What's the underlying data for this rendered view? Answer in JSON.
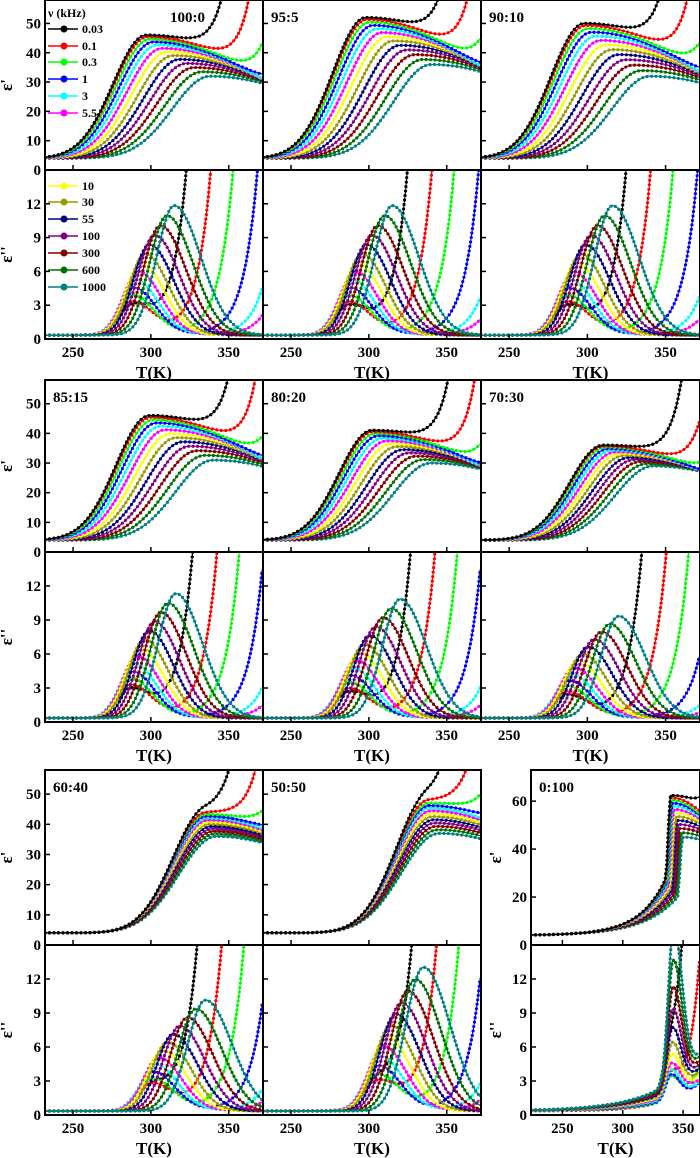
{
  "chart_data": {
    "type": "line",
    "x_label": "T(K)",
    "y_label_real": "ε'",
    "y_label_imag": "ε''",
    "legend": {
      "title": "ν (kHz)",
      "placement": "top-left of first column",
      "entries": [
        "0.03",
        "0.1",
        "0.3",
        "1",
        "3",
        "5.5",
        "10",
        "30",
        "55",
        "100",
        "300",
        "600",
        "1000"
      ]
    },
    "series_colors": [
      "#000000",
      "#ff0000",
      "#00ff00",
      "#0000ff",
      "#00ffff",
      "#ff00ff",
      "#ffff00",
      "#9a9a00",
      "#000080",
      "#800080",
      "#800000",
      "#007000",
      "#008080"
    ],
    "x_ticks": [
      "250",
      "300",
      "350"
    ],
    "xlim": [
      232,
      372
    ],
    "real_ylim": [
      0,
      58
    ],
    "real_ticks": [
      "0",
      "10",
      "20",
      "30",
      "40",
      "50"
    ],
    "imag_ylim": [
      0,
      15
    ],
    "imag_ticks": [
      "0",
      "3",
      "6",
      "9",
      "12"
    ],
    "panels": [
      {
        "label": "100:0",
        "eps_real_peak_T": [
          297,
          338
        ],
        "eps_real_peak": [
          46,
          32
        ],
        "eps_imag_peak_T": [
          288,
          315
        ],
        "eps_imag_peak": [
          2.5,
          11.5
        ],
        "conduction_T": 323
      },
      {
        "label": "95:5",
        "eps_real_peak_T": [
          298,
          340
        ],
        "eps_real_peak": [
          52,
          36
        ],
        "eps_imag_peak_T": [
          287,
          315
        ],
        "eps_imag_peak": [
          2.5,
          11.5
        ],
        "conduction_T": 325
      },
      {
        "label": "90:10",
        "eps_real_peak_T": [
          298,
          340
        ],
        "eps_real_peak": [
          50,
          32
        ],
        "eps_imag_peak_T": [
          287,
          316
        ],
        "eps_imag_peak": [
          2.5,
          11.5
        ],
        "conduction_T": 325
      },
      {
        "label": "85:15",
        "eps_real_peak_T": [
          299,
          340
        ],
        "eps_real_peak": [
          46,
          31
        ],
        "eps_imag_peak_T": [
          287,
          316
        ],
        "eps_imag_peak": [
          2.5,
          11
        ],
        "conduction_T": 327
      },
      {
        "label": "80:20",
        "eps_real_peak_T": [
          302,
          340
        ],
        "eps_real_peak": [
          41,
          30
        ],
        "eps_imag_peak_T": [
          287,
          320
        ],
        "eps_imag_peak": [
          2.2,
          10.5
        ],
        "conduction_T": 327
      },
      {
        "label": "70:30",
        "eps_real_peak_T": [
          310,
          342
        ],
        "eps_real_peak": [
          36,
          29
        ],
        "eps_imag_peak_T": [
          287,
          320
        ],
        "eps_imag_peak": [
          2,
          9
        ]
      },
      {
        "label": "60:40",
        "eps_real_peak_T": [
          335,
          342
        ],
        "eps_real_peak": [
          44,
          36
        ],
        "eps_imag_peak_T": [
          300,
          335
        ],
        "eps_imag_peak": [
          2,
          9.8
        ],
        "conduction_T": 330
      },
      {
        "label": "50:50",
        "eps_real_peak_T": [
          338,
          345
        ],
        "eps_real_peak": [
          48,
          37
        ],
        "eps_imag_peak_T": [
          305,
          335
        ],
        "eps_imag_peak": [
          2,
          12.7
        ],
        "conduction_T": 328
      },
      {
        "label": "0:100",
        "xlim": [
          224,
          364
        ],
        "real_ylim": [
          0,
          73
        ],
        "real_ticks": [
          "0",
          "20",
          "40",
          "60"
        ],
        "eps_real_peak_T": [
          340,
          350
        ],
        "eps_real_peak": [
          62,
          45
        ],
        "eps_imag_peak_T": [
          339,
          342
        ],
        "eps_imag_peak": [
          2,
          13.5
        ],
        "conduction_T": 350
      }
    ]
  }
}
